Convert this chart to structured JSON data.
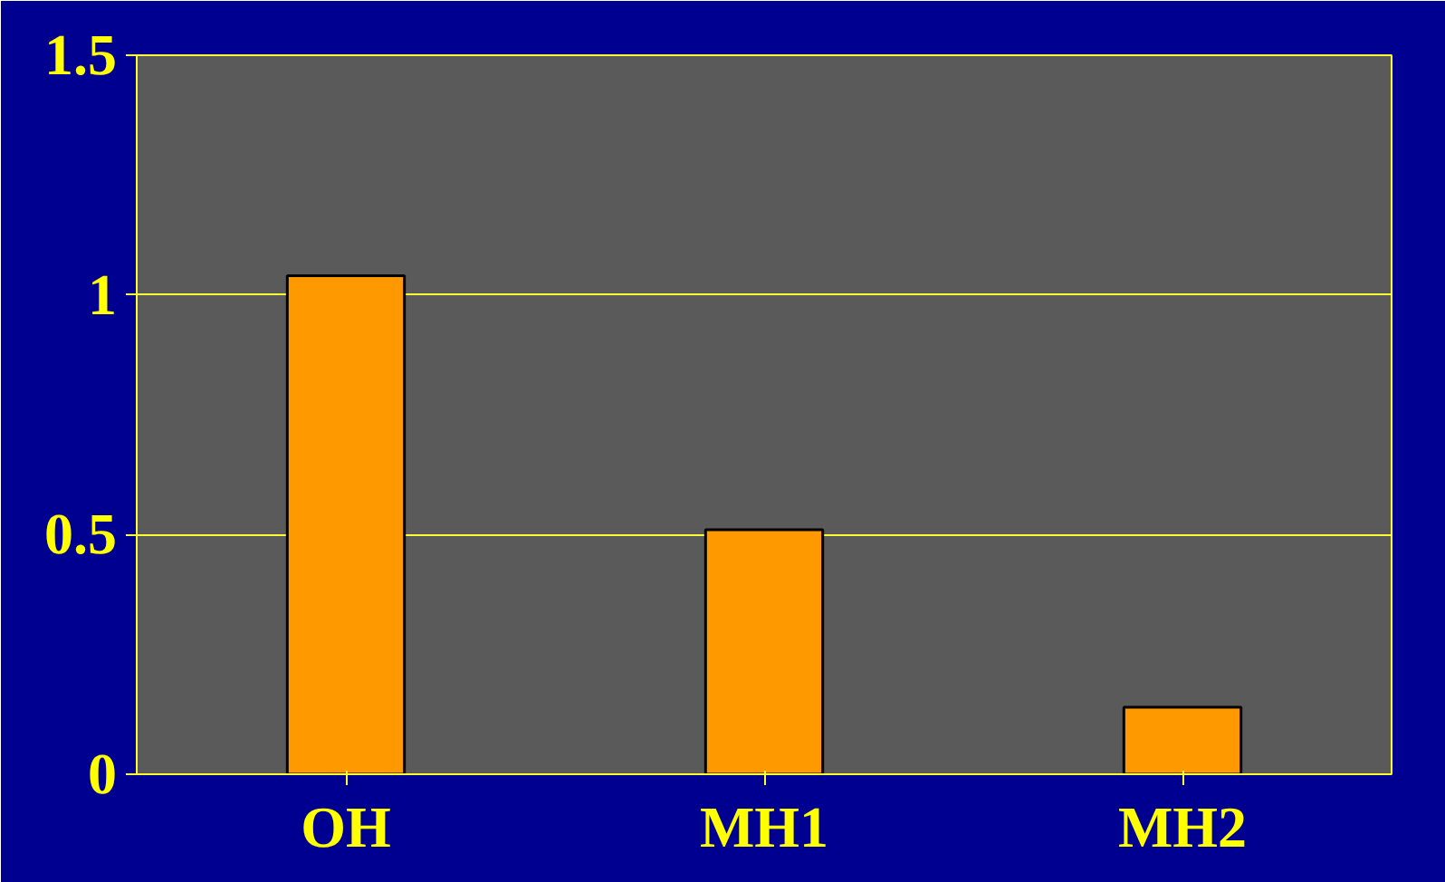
{
  "chart_data": {
    "type": "bar",
    "categories": [
      "OH",
      "MH1",
      "MH2"
    ],
    "values": [
      1.04,
      0.51,
      0.14
    ],
    "color": "#ff9900",
    "ylim": [
      0,
      1.5
    ],
    "yticks": [
      0,
      0.5,
      1,
      1.5
    ],
    "grid": "y"
  }
}
